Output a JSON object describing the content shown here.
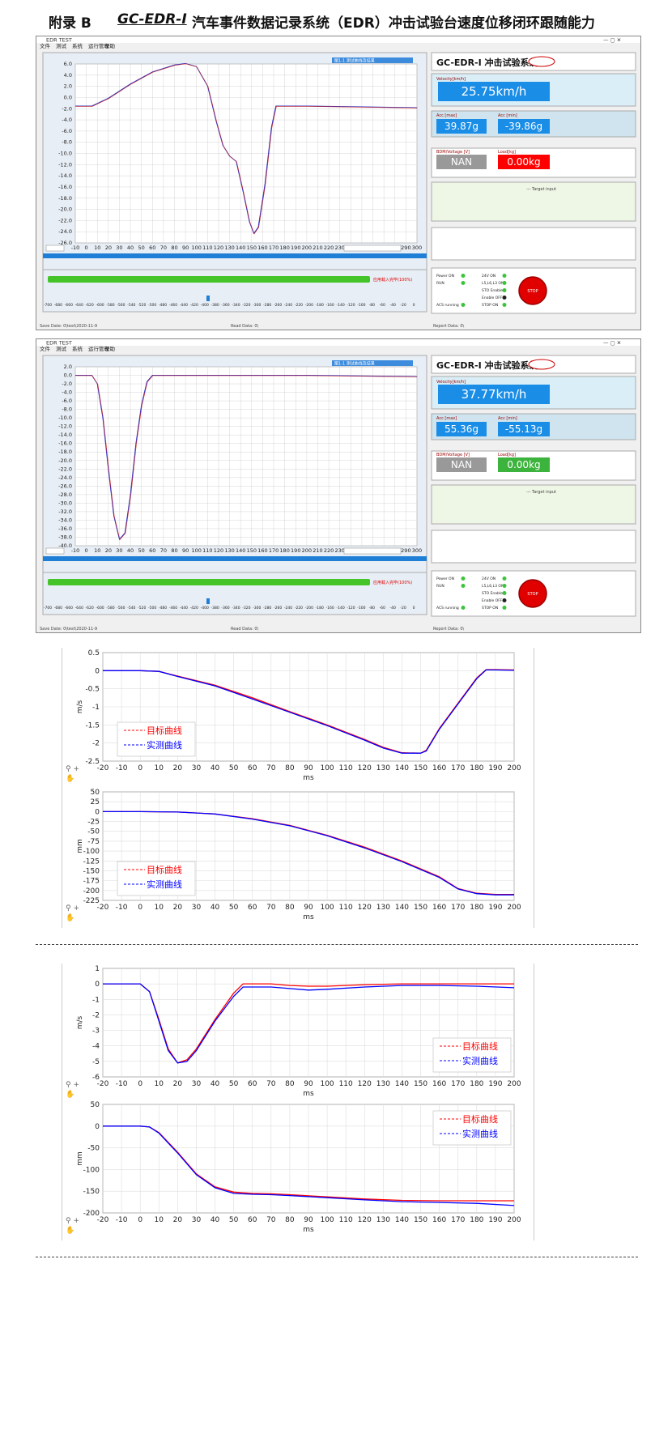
{
  "doc": {
    "appendix_label": "附录 B",
    "product": "GC-EDR-I",
    "title_rest": "汽车事件数据记录系统（EDR）冲击试验台速度位移闭环跟随能力"
  },
  "screens": [
    {
      "menu": [
        "文件",
        "测试",
        "系统",
        "运行管理",
        "帮助"
      ],
      "brand": "GC-EDR-I 冲击试验系统",
      "velocity_label": "Velocity[km/h]",
      "velocity": "25.75km/h",
      "acc_max_label": "Acc [max]",
      "acc_max": "39.87g",
      "acc_min_label": "Acc [min]",
      "acc_min": "-39.86g",
      "bdm_label": "BDM/Voltage [V]",
      "bdm": "NAN",
      "load_label": "Load[kg]",
      "load": "0.00kg",
      "load_color": "#ff0000",
      "target_input": "--- Target input",
      "status": [
        [
          "Power ON",
          "24V ON"
        ],
        [
          "RUN",
          "L5,L6,L3 ON"
        ],
        [
          "",
          "STO Enable"
        ],
        [
          "",
          "Enable OFF"
        ],
        [
          "ACS running",
          "STOP ON"
        ]
      ],
      "stop": "STOP",
      "plot_legend": "图1-1 测试曲线及结果",
      "progress_text": "应用载入完毕(100%)",
      "x_ticks": [
        "-10",
        "0",
        "10",
        "20",
        "30",
        "40",
        "50",
        "60",
        "70",
        "80",
        "90",
        "100",
        "110",
        "120",
        "130",
        "140",
        "150",
        "160",
        "170",
        "180",
        "190",
        "200",
        "210",
        "220",
        "230",
        "240",
        "250",
        "260",
        "270",
        "280",
        "290",
        "300"
      ],
      "y_ticks": [
        "6.0",
        "4.0",
        "2.0",
        "0.0",
        "-2.0",
        "-4.0",
        "-6.0",
        "-8.0",
        "-10.0",
        "-12.0",
        "-14.0",
        "-16.0",
        "-18.0",
        "-20.0",
        "-22.0",
        "-24.0",
        "-26.0"
      ],
      "scale_ticks": [
        "-700",
        "-680",
        "-660",
        "-640",
        "-620",
        "-600",
        "-580",
        "-560",
        "-540",
        "-520",
        "-500",
        "-480",
        "-460",
        "-440",
        "-420",
        "-400",
        "-380",
        "-360",
        "-340",
        "-320",
        "-300",
        "-280",
        "-260",
        "-240",
        "-220",
        "-200",
        "-180",
        "-160",
        "-140",
        "-120",
        "-100",
        "-80",
        "-60",
        "-40",
        "-20",
        "0"
      ],
      "save_date": "Save Date:  0\\test\\2020-11-9",
      "read_date": "Read Data:  0\\",
      "report_date": "Report Data:  0\\"
    },
    {
      "menu": [
        "文件",
        "测试",
        "系统",
        "运行管理",
        "帮助"
      ],
      "brand": "GC-EDR-I 冲击试验系统",
      "velocity_label": "Velocity[km/h]",
      "velocity": "37.77km/h",
      "acc_max_label": "Acc [max]",
      "acc_max": "55.36g",
      "acc_min_label": "Acc [min]",
      "acc_min": "-55.13g",
      "bdm_label": "BDM/Voltage [V]",
      "bdm": "NAN",
      "load_label": "Load[kg]",
      "load": "0.00kg",
      "load_color": "#3cb33c",
      "target_input": "--- Target input",
      "status": [
        [
          "Power ON",
          "24V ON"
        ],
        [
          "RUN",
          "L5,L6,L3 ON"
        ],
        [
          "",
          "STO Enable"
        ],
        [
          "",
          "Enable OFF"
        ],
        [
          "ACS running",
          "STOP ON"
        ]
      ],
      "stop": "STOP",
      "plot_legend": "图1-1 测试曲线及结果",
      "progress_text": "应用载入完毕(100%)",
      "x_ticks": [
        "-10",
        "0",
        "10",
        "20",
        "30",
        "40",
        "50",
        "60",
        "70",
        "80",
        "90",
        "100",
        "110",
        "120",
        "130",
        "140",
        "150",
        "160",
        "170",
        "180",
        "190",
        "200",
        "210",
        "220",
        "230",
        "240",
        "250",
        "260",
        "270",
        "280",
        "290",
        "300"
      ],
      "y_ticks": [
        "2.0",
        "0.0",
        "-2.0",
        "-4.0",
        "-6.0",
        "-8.0",
        "-10.0",
        "-12.0",
        "-14.0",
        "-16.0",
        "-18.0",
        "-20.0",
        "-22.0",
        "-24.0",
        "-26.0",
        "-28.0",
        "-30.0",
        "-32.0",
        "-34.0",
        "-36.0",
        "-38.0",
        "-40.0"
      ],
      "scale_ticks": [
        "-700",
        "-680",
        "-660",
        "-640",
        "-620",
        "-600",
        "-580",
        "-560",
        "-540",
        "-520",
        "-500",
        "-480",
        "-460",
        "-440",
        "-420",
        "-400",
        "-380",
        "-360",
        "-340",
        "-320",
        "-300",
        "-280",
        "-260",
        "-240",
        "-220",
        "-200",
        "-180",
        "-160",
        "-140",
        "-120",
        "-100",
        "-80",
        "-60",
        "-40",
        "-20",
        "0"
      ],
      "save_date": "Save Date:  0\\test\\2020-11-9",
      "read_date": "Read Data:  0\\",
      "report_date": "Report Data:  0\\"
    }
  ],
  "chart_data": [
    {
      "type": "line",
      "xlabel": "ms",
      "ylabel": "m/s",
      "xlim": [
        -20,
        200
      ],
      "ylim": [
        -2.5,
        0.5
      ],
      "x_ticks": [
        "-20",
        "-10",
        "0",
        "10",
        "20",
        "30",
        "40",
        "50",
        "60",
        "70",
        "80",
        "90",
        "100",
        "110",
        "120",
        "130",
        "140",
        "150",
        "160",
        "170",
        "180",
        "190",
        "200"
      ],
      "y_ticks": [
        "0.5",
        "0",
        "-0.5",
        "-1",
        "-1.5",
        "-2",
        "-2.5"
      ],
      "legend": "bottom-left",
      "series": [
        {
          "name": "目标曲线",
          "color": "#ff0000",
          "dashed": true,
          "x": [
            -20,
            0,
            10,
            20,
            40,
            60,
            80,
            100,
            120,
            130,
            140,
            150,
            153,
            160,
            170,
            180,
            185,
            190,
            200
          ],
          "y": [
            0,
            0,
            -0.02,
            -0.15,
            -0.4,
            -0.75,
            -1.13,
            -1.5,
            -1.9,
            -2.12,
            -2.27,
            -2.28,
            -2.2,
            -1.6,
            -0.9,
            -0.2,
            0.03,
            0.03,
            0.02
          ]
        },
        {
          "name": "实测曲线",
          "color": "#0000ff",
          "dashed": true,
          "x": [
            -20,
            0,
            10,
            20,
            40,
            60,
            80,
            100,
            120,
            130,
            140,
            150,
            153,
            160,
            170,
            180,
            185,
            190,
            200
          ],
          "y": [
            0,
            0,
            -0.02,
            -0.16,
            -0.42,
            -0.78,
            -1.15,
            -1.52,
            -1.92,
            -2.14,
            -2.28,
            -2.28,
            -2.22,
            -1.62,
            -0.92,
            -0.22,
            0.02,
            0.02,
            0.01
          ]
        }
      ]
    },
    {
      "type": "line",
      "xlabel": "ms",
      "ylabel": "mm",
      "xlim": [
        -20,
        200
      ],
      "ylim": [
        -225,
        50
      ],
      "x_ticks": [
        "-20",
        "-10",
        "0",
        "10",
        "20",
        "30",
        "40",
        "50",
        "60",
        "70",
        "80",
        "90",
        "100",
        "110",
        "120",
        "130",
        "140",
        "150",
        "160",
        "170",
        "180",
        "190",
        "200"
      ],
      "y_ticks": [
        "50",
        "25",
        "0",
        "-25",
        "-50",
        "-75",
        "-100",
        "-125",
        "-150",
        "-175",
        "-200",
        "-225"
      ],
      "legend": "bottom-left",
      "series": [
        {
          "name": "目标曲线",
          "color": "#ff0000",
          "dashed": true,
          "x": [
            -20,
            0,
            20,
            40,
            60,
            80,
            100,
            120,
            140,
            160,
            170,
            180,
            190,
            200
          ],
          "y": [
            0,
            0,
            -1,
            -6,
            -18,
            -35,
            -60,
            -90,
            -125,
            -165,
            -195,
            -207,
            -210,
            -210
          ]
        },
        {
          "name": "实测曲线",
          "color": "#0000ff",
          "dashed": true,
          "x": [
            -20,
            0,
            20,
            40,
            60,
            80,
            100,
            120,
            140,
            160,
            170,
            180,
            190,
            200
          ],
          "y": [
            0,
            0,
            -1,
            -6,
            -19,
            -36,
            -61,
            -92,
            -127,
            -167,
            -196,
            -208,
            -211,
            -211
          ]
        }
      ]
    },
    {
      "type": "line",
      "xlabel": "ms",
      "ylabel": "m/s",
      "xlim": [
        -20,
        200
      ],
      "ylim": [
        -6,
        1
      ],
      "x_ticks": [
        "-20",
        "-10",
        "0",
        "10",
        "20",
        "30",
        "40",
        "50",
        "60",
        "70",
        "80",
        "90",
        "100",
        "110",
        "120",
        "130",
        "140",
        "150",
        "160",
        "170",
        "180",
        "190",
        "200"
      ],
      "y_ticks": [
        "1",
        "0",
        "-1",
        "-2",
        "-3",
        "-4",
        "-5",
        "-6"
      ],
      "legend": "bottom-right",
      "series": [
        {
          "name": "目标曲线",
          "color": "#ff0000",
          "dashed": true,
          "x": [
            -20,
            0,
            5,
            10,
            15,
            20,
            25,
            30,
            40,
            50,
            55,
            60,
            70,
            80,
            90,
            100,
            120,
            140,
            160,
            180,
            200
          ],
          "y": [
            0,
            0,
            -0.5,
            -2.3,
            -4.2,
            -5.1,
            -4.9,
            -4.2,
            -2.3,
            -0.6,
            0,
            0,
            0,
            -0.1,
            -0.15,
            -0.15,
            -0.05,
            0,
            0,
            0,
            0
          ]
        },
        {
          "name": "实测曲线",
          "color": "#0000ff",
          "dashed": true,
          "x": [
            -20,
            0,
            5,
            10,
            15,
            20,
            25,
            30,
            40,
            50,
            55,
            60,
            70,
            80,
            90,
            100,
            120,
            140,
            160,
            180,
            200
          ],
          "y": [
            0,
            0,
            -0.5,
            -2.4,
            -4.3,
            -5.1,
            -5.0,
            -4.3,
            -2.4,
            -0.8,
            -0.2,
            -0.2,
            -0.2,
            -0.3,
            -0.4,
            -0.35,
            -0.2,
            -0.1,
            -0.1,
            -0.15,
            -0.25
          ]
        }
      ]
    },
    {
      "type": "line",
      "xlabel": "ms",
      "ylabel": "mm",
      "xlim": [
        -20,
        200
      ],
      "ylim": [
        -200,
        50
      ],
      "x_ticks": [
        "-20",
        "-10",
        "0",
        "10",
        "20",
        "30",
        "40",
        "50",
        "60",
        "70",
        "80",
        "90",
        "100",
        "110",
        "120",
        "130",
        "140",
        "150",
        "160",
        "170",
        "180",
        "190",
        "200"
      ],
      "y_ticks": [
        "50",
        "0",
        "-50",
        "-100",
        "-150",
        "-200"
      ],
      "legend": "top-right",
      "series": [
        {
          "name": "目标曲线",
          "color": "#ff0000",
          "dashed": true,
          "x": [
            -20,
            0,
            5,
            10,
            20,
            30,
            40,
            50,
            60,
            70,
            80,
            100,
            120,
            140,
            160,
            180,
            200
          ],
          "y": [
            0,
            0,
            -2,
            -15,
            -60,
            -110,
            -140,
            -152,
            -155,
            -156,
            -158,
            -163,
            -168,
            -171,
            -172,
            -172,
            -172
          ]
        },
        {
          "name": "实测曲线",
          "color": "#0000ff",
          "dashed": true,
          "x": [
            -20,
            0,
            5,
            10,
            20,
            30,
            40,
            50,
            60,
            70,
            80,
            100,
            120,
            140,
            160,
            180,
            200
          ],
          "y": [
            0,
            0,
            -2,
            -16,
            -62,
            -112,
            -142,
            -155,
            -157,
            -158,
            -160,
            -165,
            -170,
            -174,
            -176,
            -178,
            -183
          ]
        }
      ]
    }
  ]
}
